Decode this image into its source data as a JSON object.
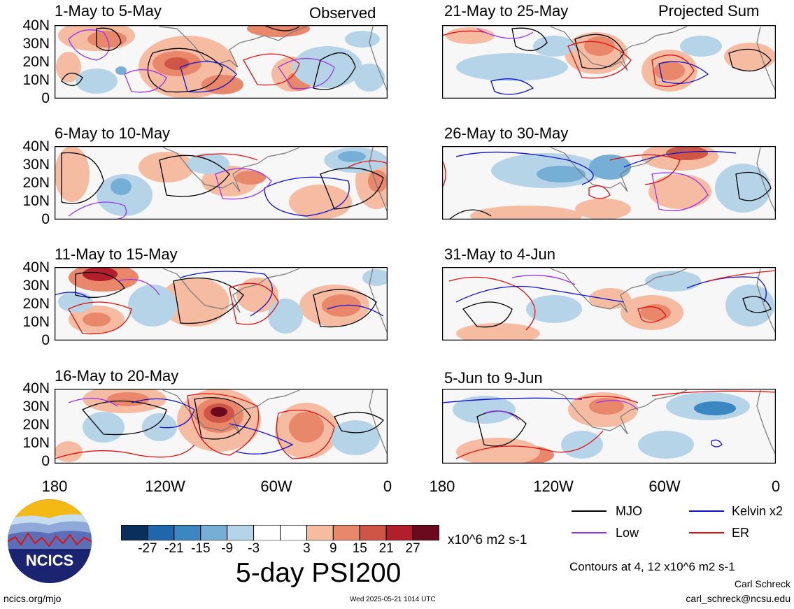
{
  "header": {
    "observed_label": "Observed",
    "projected_label": "Projected Sum"
  },
  "panels": [
    {
      "title": "1-May to 5-May"
    },
    {
      "title": "6-May to 10-May"
    },
    {
      "title": "11-May to 15-May"
    },
    {
      "title": "16-May to 20-May"
    },
    {
      "title": "21-May to 25-May"
    },
    {
      "title": "26-May to 30-May"
    },
    {
      "title": "31-May to 4-Jun"
    },
    {
      "title": "5-Jun to 9-Jun"
    }
  ],
  "lat_labels": [
    "40N",
    "30N",
    "20N",
    "10N",
    "0"
  ],
  "lon_labels": [
    "180",
    "120W",
    "60W",
    "0"
  ],
  "colorbar": {
    "colors": [
      "#0b2f5c",
      "#1f66ad",
      "#3b87c2",
      "#75afd5",
      "#b5d4e8",
      "#ffffff",
      "#ffffff",
      "#f6bca1",
      "#e9876a",
      "#cf5546",
      "#b21f2c",
      "#6b0a1f"
    ],
    "tick_labels": [
      "-27",
      "-21",
      "-15",
      "-9",
      "-3",
      "3",
      "9",
      "15",
      "21",
      "27"
    ],
    "units": "x10^6 m2 s-1",
    "title": "5-day PSI200"
  },
  "legend": {
    "items": [
      {
        "label": "MJO",
        "color": "#000000"
      },
      {
        "label": "Kelvin x2",
        "color": "#1010d0"
      },
      {
        "label": "Low",
        "color": "#9933ee"
      },
      {
        "label": "ER",
        "color": "#e01010"
      }
    ],
    "contours_note": "Contours at 4, 12 x10^6 m2 s-1"
  },
  "footer": {
    "author": "Carl Schreck",
    "email": "carl_schreck@ncsu.edu",
    "site": "ncics.org/mjo",
    "timestamp": "Wed 2025-05-21 1014 UTC",
    "logo_text": "NCICS"
  }
}
